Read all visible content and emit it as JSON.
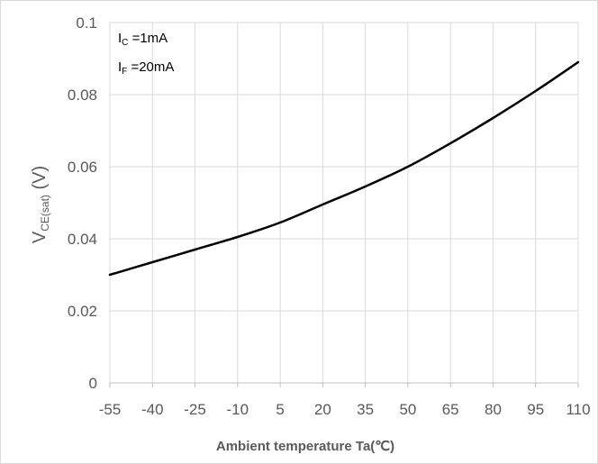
{
  "chart_data": {
    "type": "line",
    "xlabel": "Ambient temperature Ta(℃)",
    "ylabel": {
      "main": "V",
      "sub": "CE(sat)",
      "unit": " (V)"
    },
    "x_ticks": [
      "-55",
      "-40",
      "-25",
      "-10",
      "5",
      "20",
      "35",
      "50",
      "65",
      "80",
      "95",
      "110"
    ],
    "y_ticks": [
      "0",
      "0.02",
      "0.04",
      "0.06",
      "0.08",
      "0.1"
    ],
    "xlim": [
      -55,
      110
    ],
    "ylim": [
      0,
      0.1
    ],
    "grid": true,
    "annotations": [
      {
        "main": "I",
        "sub": "C",
        "rest": " =1mA"
      },
      {
        "main": "I",
        "sub": "F",
        "rest": " =20mA"
      }
    ],
    "series": [
      {
        "color": "#000000",
        "x": [
          -55,
          -40,
          -25,
          -10,
          5,
          20,
          35,
          50,
          65,
          80,
          95,
          110
        ],
        "y": [
          0.03,
          0.0335,
          0.037,
          0.0405,
          0.0445,
          0.0495,
          0.0545,
          0.06,
          0.0665,
          0.0735,
          0.081,
          0.089
        ]
      }
    ]
  }
}
